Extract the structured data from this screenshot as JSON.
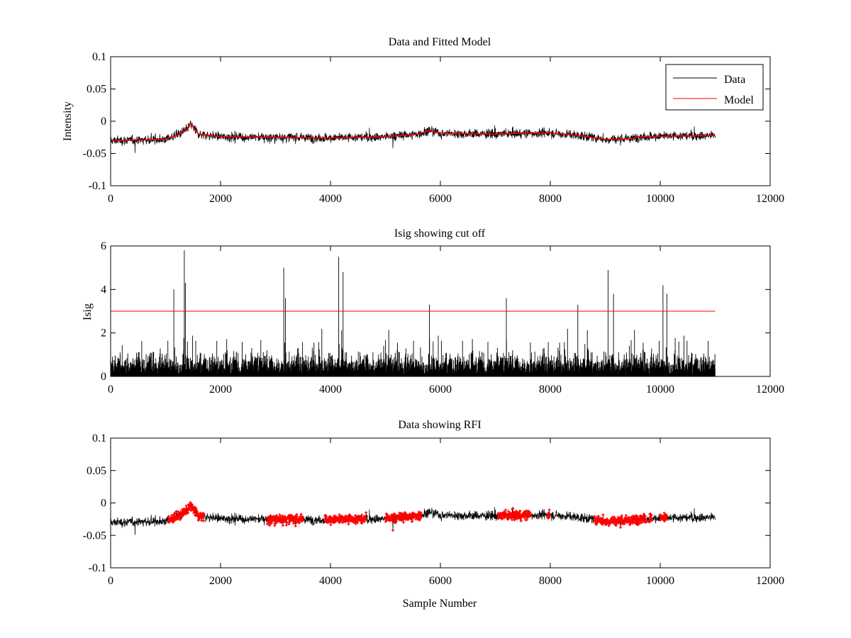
{
  "chart_data": [
    {
      "type": "line",
      "title": "Data and Fitted Model",
      "xlabel": "",
      "ylabel": "Intensity",
      "xlim": [
        0,
        12000
      ],
      "ylim": [
        -0.1,
        0.1
      ],
      "xticks": [
        0,
        2000,
        4000,
        6000,
        8000,
        10000,
        12000
      ],
      "xtick_labels": [
        "0",
        "2000",
        "4000",
        "6000",
        "8000",
        "10000",
        "12000"
      ],
      "yticks": [
        -0.1,
        -0.05,
        0,
        0.05,
        0.1
      ],
      "ytick_labels": [
        "-0.1",
        "-0.05",
        "0",
        "0.05",
        "0.1"
      ],
      "legend": "top-right",
      "series": [
        {
          "name": "Data",
          "color": "#000000",
          "kind": "noise",
          "n": 11000,
          "noise_sd": 0.006,
          "baseline": [
            [
              0,
              -0.03
            ],
            [
              1000,
              -0.028
            ],
            [
              1200,
              -0.022
            ],
            [
              1400,
              -0.012
            ],
            [
              1450,
              -0.004
            ],
            [
              1600,
              -0.02
            ],
            [
              2000,
              -0.024
            ],
            [
              3000,
              -0.025
            ],
            [
              4000,
              -0.026
            ],
            [
              5000,
              -0.024
            ],
            [
              5600,
              -0.02
            ],
            [
              5800,
              -0.014
            ],
            [
              6000,
              -0.019
            ],
            [
              7000,
              -0.02
            ],
            [
              8000,
              -0.018
            ],
            [
              8500,
              -0.022
            ],
            [
              9000,
              -0.028
            ],
            [
              9500,
              -0.027
            ],
            [
              9600,
              -0.024
            ],
            [
              11000,
              -0.022
            ]
          ]
        },
        {
          "name": "Model",
          "color": "#ff0000",
          "kind": "line",
          "points": [
            [
              0,
              -0.03
            ],
            [
              1000,
              -0.028
            ],
            [
              1200,
              -0.022
            ],
            [
              1400,
              -0.012
            ],
            [
              1450,
              -0.004
            ],
            [
              1600,
              -0.02
            ],
            [
              2000,
              -0.024
            ],
            [
              3000,
              -0.025
            ],
            [
              4000,
              -0.026
            ],
            [
              5000,
              -0.024
            ],
            [
              5600,
              -0.02
            ],
            [
              5800,
              -0.014
            ],
            [
              6000,
              -0.019
            ],
            [
              7000,
              -0.02
            ],
            [
              7500,
              -0.018
            ],
            [
              8000,
              -0.018
            ],
            [
              8500,
              -0.022
            ],
            [
              9000,
              -0.028
            ],
            [
              9500,
              -0.027
            ],
            [
              9600,
              -0.024
            ],
            [
              11000,
              -0.022
            ]
          ]
        }
      ]
    },
    {
      "type": "line",
      "title": "Isig showing cut off",
      "xlabel": "",
      "ylabel": "Isig",
      "xlim": [
        0,
        12000
      ],
      "ylim": [
        0,
        6
      ],
      "xticks": [
        0,
        2000,
        4000,
        6000,
        8000,
        10000,
        12000
      ],
      "xtick_labels": [
        "0",
        "2000",
        "4000",
        "6000",
        "8000",
        "10000",
        "12000"
      ],
      "yticks": [
        0,
        2,
        4,
        6
      ],
      "ytick_labels": [
        "0",
        "2",
        "4",
        "6"
      ],
      "series": [
        {
          "name": "Isig",
          "color": "#000000",
          "kind": "abs-noise",
          "n": 11000,
          "spikes": [
            [
              1340,
              5.8
            ],
            [
              1360,
              4.3
            ],
            [
              1150,
              4.0
            ],
            [
              3150,
              5.0
            ],
            [
              3180,
              3.6
            ],
            [
              4150,
              5.5
            ],
            [
              4230,
              4.8
            ],
            [
              5800,
              3.3
            ],
            [
              7200,
              3.6
            ],
            [
              8500,
              3.3
            ],
            [
              9050,
              4.9
            ],
            [
              9150,
              3.8
            ],
            [
              10050,
              4.2
            ],
            [
              10120,
              3.8
            ]
          ]
        },
        {
          "name": "Cut off",
          "color": "#ff0000",
          "kind": "hline",
          "y": 3,
          "x": [
            0,
            11000
          ]
        }
      ]
    },
    {
      "type": "scatter",
      "title": "Data showing RFI",
      "xlabel": "Sample Number",
      "ylabel": "",
      "xlim": [
        0,
        12000
      ],
      "ylim": [
        -0.1,
        0.1
      ],
      "xticks": [
        0,
        2000,
        4000,
        6000,
        8000,
        10000,
        12000
      ],
      "xtick_labels": [
        "0",
        "2000",
        "4000",
        "6000",
        "8000",
        "10000",
        "12000"
      ],
      "yticks": [
        -0.1,
        -0.05,
        0,
        0.05,
        0.1
      ],
      "ytick_labels": [
        "-0.1",
        "-0.05",
        "0",
        "0.05",
        "0.1"
      ],
      "series": [
        {
          "name": "Data",
          "color": "#000000",
          "kind": "noise",
          "n": 11000
        },
        {
          "name": "RFI",
          "color": "#ff0000",
          "kind": "flagged-points",
          "ranges": [
            [
              1050,
              1700
            ],
            [
              2850,
              3500
            ],
            [
              3900,
              4650
            ],
            [
              5000,
              5650
            ],
            [
              7050,
              7650
            ],
            [
              7950,
              7990
            ],
            [
              8800,
              9750
            ],
            [
              9800,
              9850
            ],
            [
              10000,
              10120
            ]
          ]
        }
      ]
    }
  ]
}
